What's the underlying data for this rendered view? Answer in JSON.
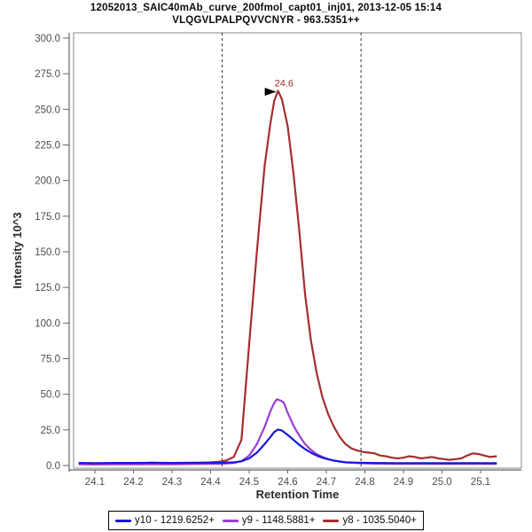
{
  "header": {
    "title": "12052013_SAIC40mAb_curve_200fmol_capt01_inj01, 2013-12-05 15:14",
    "subtitle": "VLQGVLPALPQVVCNYR - 963.5351++"
  },
  "chart_data": {
    "type": "line",
    "title": "12052013_SAIC40mAb_curve_200fmol_capt01_inj01, 2013-12-05 15:14",
    "subtitle": "VLQGVLPALPQVVCNYR - 963.5351++",
    "xlabel": "Retention Time",
    "ylabel": "Intensity 10^3",
    "xlim": [
      24.04,
      25.21
    ],
    "ylim": [
      -1.9,
      303.7
    ],
    "grid": false,
    "legend_position": "bottom-center",
    "x_tick_values": [
      24.1,
      24.2,
      24.3,
      24.4,
      24.5,
      24.6,
      24.7,
      24.8,
      24.9,
      25.0,
      25.1
    ],
    "x_tick_labels": [
      "24.1",
      "24.2",
      "24.3",
      "24.4",
      "24.5",
      "24.6",
      "24.7",
      "24.8",
      "24.9",
      "25.0",
      "25.1"
    ],
    "y_tick_values": [
      0,
      25,
      50,
      75,
      100,
      125,
      150,
      175,
      200,
      225,
      250,
      275,
      300
    ],
    "y_tick_labels": [
      "0.0",
      "25.0",
      "50.0",
      "75.0",
      "100.0",
      "125.0",
      "150.0",
      "175.0",
      "200.0",
      "225.0",
      "250.0",
      "275.0",
      "300.0"
    ],
    "peak_boundaries": [
      24.43,
      24.79
    ],
    "peak_annotation": {
      "label": "24.6",
      "x": 24.575,
      "y": 263
    },
    "series": [
      {
        "name": "y10 - 1219.6252+",
        "color": "#1717dd",
        "points": [
          [
            24.06,
            1.8
          ],
          [
            24.1,
            1.7
          ],
          [
            24.15,
            1.8
          ],
          [
            24.2,
            1.8
          ],
          [
            24.25,
            1.9
          ],
          [
            24.3,
            1.8
          ],
          [
            24.35,
            1.9
          ],
          [
            24.4,
            2.0
          ],
          [
            24.43,
            2.0
          ],
          [
            24.46,
            2.2
          ],
          [
            24.48,
            3.0
          ],
          [
            24.5,
            5.0
          ],
          [
            24.52,
            9.0
          ],
          [
            24.54,
            15.0
          ],
          [
            24.555,
            20.0
          ],
          [
            24.565,
            23.5
          ],
          [
            24.575,
            25.3
          ],
          [
            24.585,
            24.5
          ],
          [
            24.6,
            21.5
          ],
          [
            24.615,
            18.0
          ],
          [
            24.63,
            14.5
          ],
          [
            24.645,
            11.5
          ],
          [
            24.66,
            9.0
          ],
          [
            24.675,
            7.0
          ],
          [
            24.69,
            5.5
          ],
          [
            24.705,
            4.3
          ],
          [
            24.72,
            3.4
          ],
          [
            24.735,
            2.8
          ],
          [
            24.75,
            2.3
          ],
          [
            24.78,
            2.0
          ],
          [
            24.82,
            1.8
          ],
          [
            24.88,
            1.7
          ],
          [
            24.95,
            1.7
          ],
          [
            25.0,
            1.6
          ],
          [
            25.05,
            1.7
          ],
          [
            25.1,
            1.7
          ],
          [
            25.14,
            1.6
          ]
        ]
      },
      {
        "name": "y9 - 1148.5881+",
        "color": "#9b3fd4",
        "points": [
          [
            24.06,
            0.8
          ],
          [
            24.1,
            0.7
          ],
          [
            24.15,
            0.8
          ],
          [
            24.2,
            0.9
          ],
          [
            24.25,
            0.8
          ],
          [
            24.3,
            0.9
          ],
          [
            24.35,
            1.0
          ],
          [
            24.4,
            1.1
          ],
          [
            24.43,
            1.2
          ],
          [
            24.46,
            1.8
          ],
          [
            24.48,
            3.0
          ],
          [
            24.5,
            7.0
          ],
          [
            24.52,
            15.0
          ],
          [
            24.54,
            27.0
          ],
          [
            24.555,
            38.0
          ],
          [
            24.565,
            44.0
          ],
          [
            24.572,
            46.5
          ],
          [
            24.582,
            45.5
          ],
          [
            24.59,
            44.0
          ],
          [
            24.6,
            37.0
          ],
          [
            24.615,
            28.0
          ],
          [
            24.63,
            21.0
          ],
          [
            24.645,
            15.0
          ],
          [
            24.66,
            11.0
          ],
          [
            24.675,
            8.0
          ],
          [
            24.69,
            6.0
          ],
          [
            24.705,
            4.5
          ],
          [
            24.72,
            3.5
          ],
          [
            24.735,
            2.8
          ],
          [
            24.75,
            2.2
          ],
          [
            24.78,
            1.7
          ],
          [
            24.82,
            1.4
          ],
          [
            24.88,
            1.2
          ],
          [
            24.95,
            1.2
          ],
          [
            25.0,
            1.1
          ],
          [
            25.05,
            1.2
          ],
          [
            25.1,
            1.2
          ],
          [
            25.14,
            1.1
          ]
        ]
      },
      {
        "name": "y8 - 1035.5040+",
        "color": "#a52f2f",
        "points": [
          [
            24.06,
            1.2
          ],
          [
            24.1,
            1.0
          ],
          [
            24.14,
            1.3
          ],
          [
            24.18,
            1.1
          ],
          [
            24.22,
            1.6
          ],
          [
            24.25,
            2.0
          ],
          [
            24.28,
            1.4
          ],
          [
            24.31,
            1.2
          ],
          [
            24.34,
            1.5
          ],
          [
            24.37,
            1.8
          ],
          [
            24.4,
            2.2
          ],
          [
            24.42,
            2.6
          ],
          [
            24.44,
            3.5
          ],
          [
            24.46,
            6.0
          ],
          [
            24.48,
            18.0
          ],
          [
            24.5,
            85.0
          ],
          [
            24.52,
            150.0
          ],
          [
            24.54,
            210.0
          ],
          [
            24.555,
            240.0
          ],
          [
            24.565,
            256.0
          ],
          [
            24.575,
            263.0
          ],
          [
            24.585,
            257.0
          ],
          [
            24.6,
            238.0
          ],
          [
            24.615,
            205.0
          ],
          [
            24.63,
            165.0
          ],
          [
            24.645,
            120.0
          ],
          [
            24.66,
            88.0
          ],
          [
            24.675,
            65.0
          ],
          [
            24.69,
            48.0
          ],
          [
            24.705,
            36.0
          ],
          [
            24.72,
            27.0
          ],
          [
            24.735,
            20.0
          ],
          [
            24.75,
            15.0
          ],
          [
            24.765,
            12.0
          ],
          [
            24.78,
            10.5
          ],
          [
            24.795,
            9.5
          ],
          [
            24.81,
            9.0
          ],
          [
            24.825,
            8.5
          ],
          [
            24.84,
            7.0
          ],
          [
            24.855,
            6.5
          ],
          [
            24.87,
            5.5
          ],
          [
            24.885,
            5.0
          ],
          [
            24.9,
            5.5
          ],
          [
            24.915,
            6.5
          ],
          [
            24.93,
            6.0
          ],
          [
            24.945,
            5.0
          ],
          [
            24.96,
            5.5
          ],
          [
            24.975,
            6.0
          ],
          [
            24.99,
            5.0
          ],
          [
            25.005,
            4.5
          ],
          [
            25.02,
            4.0
          ],
          [
            25.035,
            4.5
          ],
          [
            25.05,
            5.0
          ],
          [
            25.065,
            7.0
          ],
          [
            25.08,
            8.5
          ],
          [
            25.095,
            8.0
          ],
          [
            25.11,
            7.0
          ],
          [
            25.125,
            6.0
          ],
          [
            25.14,
            6.5
          ]
        ]
      }
    ],
    "colors": {
      "axis_line": "#666666",
      "plot_border": "#8a8a8a",
      "tick_label": "#4d4d4d",
      "axis_title": "#2b2b2b",
      "boundary_line": "#333333",
      "annotation_text": "#a52f2f",
      "annotation_arrow": "#000000"
    }
  }
}
